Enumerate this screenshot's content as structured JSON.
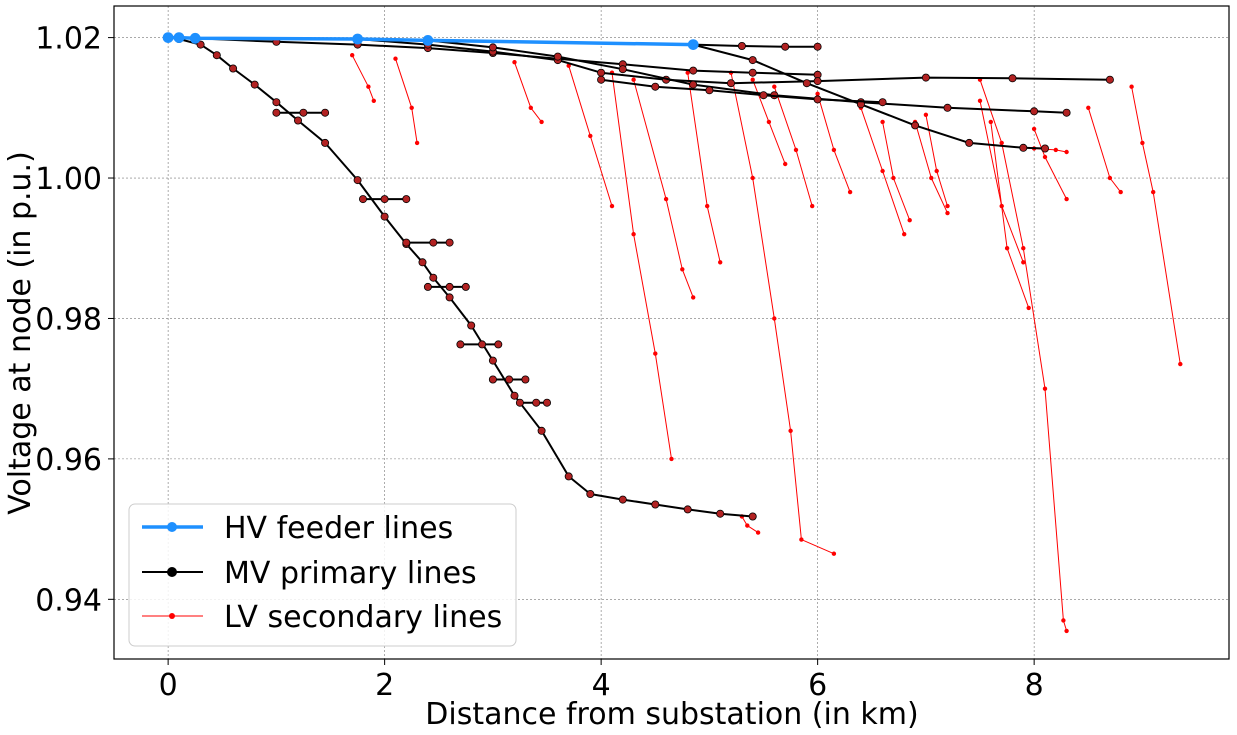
{
  "chart_data": {
    "type": "line",
    "title": "",
    "xlabel": "Distance from substation (in km)",
    "ylabel": "Voltage at node (in p.u.)",
    "xlim": [
      -0.5,
      9.8
    ],
    "ylim": [
      0.9315,
      1.0245
    ],
    "grid": true,
    "legend_position": "lower-left",
    "x_ticks": [
      0,
      2,
      4,
      6,
      8
    ],
    "x_tick_labels": [
      "0",
      "2",
      "4",
      "6",
      "8"
    ],
    "y_ticks": [
      0.94,
      0.96,
      0.98,
      1.0,
      1.02
    ],
    "y_tick_labels": [
      "0.94",
      "0.96",
      "0.98",
      "1.00",
      "1.02"
    ],
    "colors": {
      "hv": "#1e90ff",
      "mv": "#000000",
      "lv": "#ff0000",
      "mv_marker_fill": "#b22222"
    },
    "series": [
      {
        "name": "HV feeder lines",
        "role": "hv",
        "paths": [
          {
            "x": [
              0.0,
              0.1,
              0.25,
              1.75,
              2.4,
              4.85
            ],
            "y": [
              1.02,
              1.02,
              1.0199,
              1.0198,
              1.0196,
              1.019
            ]
          }
        ]
      },
      {
        "name": "MV primary lines",
        "role": "mv",
        "paths": [
          {
            "x": [
              0.1,
              0.3,
              0.45,
              0.6,
              0.8,
              1.0,
              1.2,
              1.45,
              1.75,
              2.0,
              2.2,
              2.35,
              2.45,
              2.6,
              2.8,
              3.0,
              3.2,
              3.45,
              3.7,
              3.9,
              4.2,
              4.5,
              4.8,
              5.1,
              5.4
            ],
            "y": [
              1.0198,
              1.019,
              1.0175,
              1.0156,
              1.0133,
              1.0108,
              1.0082,
              1.005,
              0.9997,
              0.9945,
              0.9906,
              0.988,
              0.9858,
              0.983,
              0.979,
              0.974,
              0.969,
              0.964,
              0.9575,
              0.955,
              0.9542,
              0.9535,
              0.9528,
              0.9522,
              0.9518
            ]
          },
          {
            "x": [
              0.25,
              1.0,
              1.75,
              2.4,
              3.0,
              3.6,
              4.2,
              4.85,
              5.4,
              6.0
            ],
            "y": [
              1.0199,
              1.0194,
              1.019,
              1.0185,
              1.0178,
              1.017,
              1.0162,
              1.0153,
              1.015,
              1.0147
            ]
          },
          {
            "x": [
              1.75,
              2.4,
              3.0,
              3.6,
              4.0,
              4.6,
              5.2,
              6.0,
              7.0,
              7.8,
              8.7
            ],
            "y": [
              1.0198,
              1.019,
              1.018,
              1.0168,
              1.015,
              1.014,
              1.0135,
              1.0138,
              1.0143,
              1.0142,
              1.014
            ]
          },
          {
            "x": [
              2.4,
              3.0,
              3.6,
              4.2,
              4.85,
              5.6,
              6.4,
              7.2,
              8.0,
              8.3
            ],
            "y": [
              1.0196,
              1.0186,
              1.0173,
              1.0155,
              1.0133,
              1.0118,
              1.0108,
              1.01,
              1.0095,
              1.0093
            ]
          },
          {
            "x": [
              4.85,
              5.4,
              5.9,
              6.4,
              6.9,
              7.4,
              7.9,
              8.1
            ],
            "y": [
              1.019,
              1.0168,
              1.0135,
              1.0105,
              1.0075,
              1.005,
              1.0043,
              1.0042
            ]
          },
          {
            "x": [
              1.0,
              1.25,
              1.45
            ],
            "y": [
              1.0093,
              1.0093,
              1.0093
            ]
          },
          {
            "x": [
              1.8,
              2.0,
              2.2
            ],
            "y": [
              0.997,
              0.997,
              0.997
            ]
          },
          {
            "x": [
              2.2,
              2.45,
              2.6
            ],
            "y": [
              0.9908,
              0.9908,
              0.9908
            ]
          },
          {
            "x": [
              2.4,
              2.6,
              2.75
            ],
            "y": [
              0.9845,
              0.9845,
              0.9845
            ]
          },
          {
            "x": [
              2.7,
              2.9,
              3.05
            ],
            "y": [
              0.9763,
              0.9763,
              0.9763
            ]
          },
          {
            "x": [
              3.0,
              3.15,
              3.3
            ],
            "y": [
              0.9713,
              0.9713,
              0.9713
            ]
          },
          {
            "x": [
              3.25,
              3.4,
              3.5
            ],
            "y": [
              0.968,
              0.968,
              0.968
            ]
          },
          {
            "x": [
              4.85,
              5.3,
              5.7,
              6.0
            ],
            "y": [
              1.019,
              1.0188,
              1.0187,
              1.0187
            ]
          },
          {
            "x": [
              4.0,
              4.5,
              5.0,
              5.5,
              6.0,
              6.6
            ],
            "y": [
              1.014,
              1.013,
              1.0125,
              1.0118,
              1.0112,
              1.0108
            ]
          }
        ]
      },
      {
        "name": "LV secondary lines",
        "role": "lv",
        "paths": [
          {
            "x": [
              7.5,
              7.7,
              7.9,
              8.1,
              8.27,
              8.3
            ],
            "y": [
              1.014,
              1.005,
              0.99,
              0.97,
              0.937,
              0.9355
            ]
          },
          {
            "x": [
              5.2,
              5.4,
              5.6,
              5.75,
              5.85,
              6.15
            ],
            "y": [
              1.015,
              1.0,
              0.98,
              0.964,
              0.9485,
              0.9465
            ]
          },
          {
            "x": [
              4.1,
              4.3,
              4.5,
              4.65
            ],
            "y": [
              1.015,
              0.992,
              0.975,
              0.96
            ]
          },
          {
            "x": [
              4.3,
              4.6,
              4.75,
              4.85
            ],
            "y": [
              1.014,
              0.997,
              0.987,
              0.983
            ]
          },
          {
            "x": [
              4.8,
              4.98,
              5.1
            ],
            "y": [
              1.015,
              0.996,
              0.988
            ]
          },
          {
            "x": [
              8.9,
              9.0,
              9.1,
              9.35
            ],
            "y": [
              1.013,
              1.005,
              0.998,
              0.9735
            ]
          },
          {
            "x": [
              7.6,
              7.75,
              7.95
            ],
            "y": [
              1.008,
              0.99,
              0.9815
            ]
          },
          {
            "x": [
              7.5,
              7.7,
              7.9
            ],
            "y": [
              1.011,
              0.996,
              0.988
            ]
          },
          {
            "x": [
              8.0,
              8.1,
              8.3
            ],
            "y": [
              1.007,
              1.003,
              0.997
            ]
          },
          {
            "x": [
              6.4,
              6.6,
              6.8
            ],
            "y": [
              1.01,
              1.001,
              0.992
            ]
          },
          {
            "x": [
              6.9,
              7.05,
              7.2
            ],
            "y": [
              1.008,
              1.0,
              0.995
            ]
          },
          {
            "x": [
              5.6,
              5.8,
              5.95
            ],
            "y": [
              1.013,
              1.004,
              0.996
            ]
          },
          {
            "x": [
              3.7,
              3.9,
              4.1
            ],
            "y": [
              1.016,
              1.006,
              0.996
            ]
          },
          {
            "x": [
              2.1,
              2.25,
              2.3
            ],
            "y": [
              1.017,
              1.01,
              1.005
            ]
          },
          {
            "x": [
              1.7,
              1.85,
              1.9
            ],
            "y": [
              1.0175,
              1.013,
              1.011
            ]
          },
          {
            "x": [
              3.2,
              3.35,
              3.45
            ],
            "y": [
              1.0165,
              1.01,
              1.008
            ]
          },
          {
            "x": [
              6.0,
              6.15,
              6.3
            ],
            "y": [
              1.012,
              1.004,
              0.998
            ]
          },
          {
            "x": [
              7.0,
              7.1,
              7.2
            ],
            "y": [
              1.009,
              1.001,
              0.996
            ]
          },
          {
            "x": [
              8.5,
              8.7,
              8.8
            ],
            "y": [
              1.01,
              1.0,
              0.998
            ]
          },
          {
            "x": [
              5.4,
              5.55,
              5.7
            ],
            "y": [
              1.014,
              1.008,
              1.002
            ]
          },
          {
            "x": [
              6.6,
              6.7,
              6.85
            ],
            "y": [
              1.008,
              1.0,
              0.994
            ]
          },
          {
            "x": [
              8.0,
              8.2,
              8.3
            ],
            "y": [
              1.0042,
              1.004,
              1.0037
            ]
          },
          {
            "x": [
              5.3,
              5.35,
              5.45
            ],
            "y": [
              0.9518,
              0.9505,
              0.9495
            ]
          }
        ]
      }
    ]
  },
  "legend": {
    "items": [
      {
        "label": "HV feeder lines",
        "role": "hv"
      },
      {
        "label": "MV primary lines",
        "role": "mv"
      },
      {
        "label": "LV secondary lines",
        "role": "lv"
      }
    ]
  }
}
